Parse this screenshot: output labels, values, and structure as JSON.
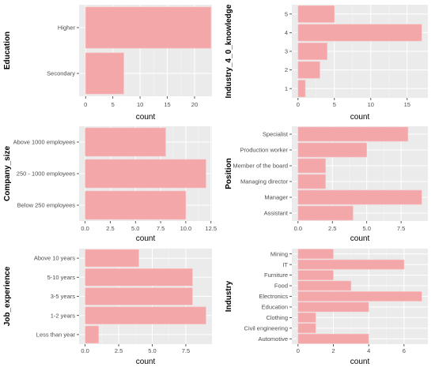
{
  "colors": {
    "panel_bg": "#ebebeb",
    "grid_major": "#ffffff",
    "grid_minor": "#f5f5f5",
    "bar": "#f4a7a9",
    "bar_stroke": "#f7c2c3",
    "tick": "#333333"
  },
  "chart_data": [
    {
      "type": "bar",
      "orientation": "horizontal",
      "categories": [
        "Higher",
        "Secondary"
      ],
      "values": [
        23,
        7
      ],
      "xlabel": "count",
      "ylabel": "Education",
      "xlim": [
        -1.2,
        23.2
      ],
      "xticks": [
        0,
        5,
        10,
        15,
        20
      ],
      "xtick_labels": [
        "0",
        "5",
        "10",
        "15",
        "20"
      ],
      "grid": true
    },
    {
      "type": "bar",
      "orientation": "horizontal",
      "categories": [
        "5",
        "4",
        "3",
        "2",
        "1"
      ],
      "values": [
        5,
        17,
        4,
        3,
        1
      ],
      "xlabel": "count",
      "ylabel": "Industry_4_0_knowledge",
      "xlim": [
        -0.85,
        17.85
      ],
      "xticks": [
        0,
        5,
        10,
        15
      ],
      "xtick_labels": [
        "0",
        "5",
        "10",
        "15"
      ],
      "grid": true
    },
    {
      "type": "bar",
      "orientation": "horizontal",
      "categories": [
        "Above 1000 employees",
        "250 - 1000 employees",
        "Below 250 employees"
      ],
      "values": [
        8,
        12,
        10
      ],
      "xlabel": "count",
      "ylabel": "Company_size",
      "xlim": [
        -0.6,
        12.6
      ],
      "xticks": [
        0,
        2.5,
        5,
        7.5,
        10,
        12.5
      ],
      "xtick_labels": [
        "0.0",
        "2.5",
        "5.0",
        "7.5",
        "10.0",
        "12.5"
      ],
      "grid": true
    },
    {
      "type": "bar",
      "orientation": "horizontal",
      "categories": [
        "Specialist",
        "Production worker",
        "Member of the board",
        "Managing director",
        "Manager",
        "Assistant"
      ],
      "values": [
        8,
        5,
        2,
        2,
        9,
        4
      ],
      "xlabel": "count",
      "ylabel": "Position",
      "xlim": [
        -0.45,
        9.45
      ],
      "xticks": [
        0,
        2.5,
        5,
        7.5
      ],
      "xtick_labels": [
        "0.0",
        "2.5",
        "5.0",
        "7.5"
      ],
      "grid": true
    },
    {
      "type": "bar",
      "orientation": "horizontal",
      "categories": [
        "Above 10 years",
        "5-10 years",
        "3-5 years",
        "1-2 years",
        "Less than year"
      ],
      "values": [
        4,
        8,
        8,
        9,
        1
      ],
      "xlabel": "count",
      "ylabel": "Job_experience",
      "xlim": [
        -0.45,
        9.45
      ],
      "xticks": [
        0,
        2.5,
        5,
        7.5
      ],
      "xtick_labels": [
        "0.0",
        "2.5",
        "5.0",
        "7.5"
      ],
      "grid": true
    },
    {
      "type": "bar",
      "orientation": "horizontal",
      "categories": [
        "Mining",
        "IT",
        "Furniture",
        "Food",
        "Electronics",
        "Education",
        "Clothing",
        "Civil engineering",
        "Automotive"
      ],
      "values": [
        2,
        6,
        2,
        3,
        7,
        4,
        1,
        1,
        4
      ],
      "xlabel": "count",
      "ylabel": "Industry",
      "xlim": [
        -0.35,
        7.35
      ],
      "xticks": [
        0,
        2,
        4,
        6
      ],
      "xtick_labels": [
        "0",
        "2",
        "4",
        "6"
      ],
      "grid": true
    }
  ]
}
